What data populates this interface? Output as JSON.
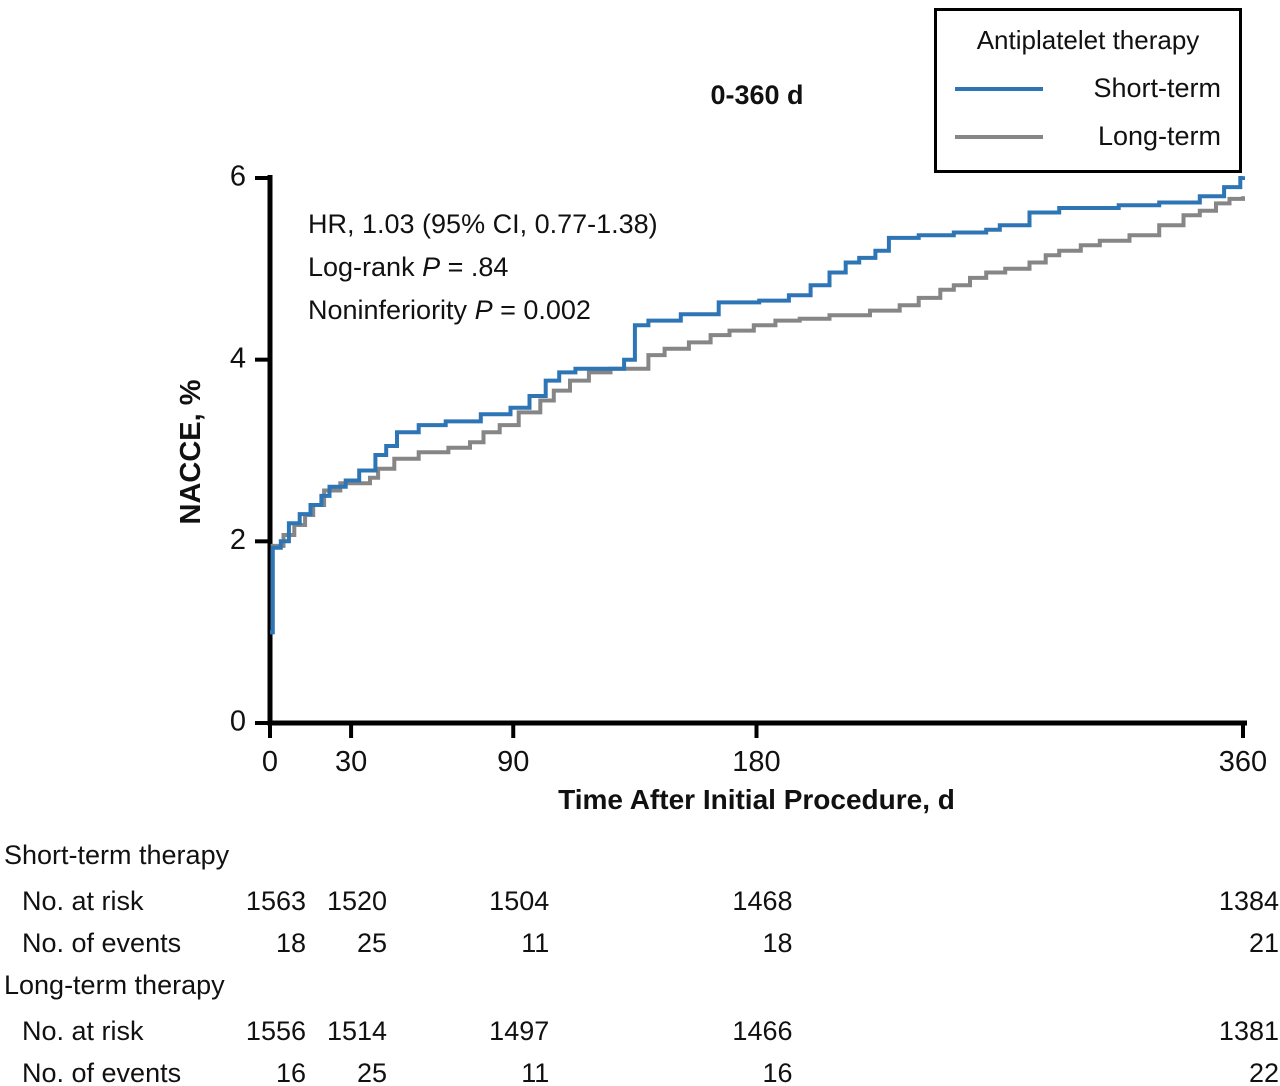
{
  "figure": {
    "title": "0-360 d",
    "annotations": {
      "hr_line": "HR, 1.03 (95% CI, 0.77-1.38)",
      "logrank": {
        "pre": "Log-rank ",
        "italic": "P",
        "post": " = .84"
      },
      "noninferiority": {
        "pre": "Noninferiority ",
        "italic": "P",
        "post": " = 0.002"
      }
    },
    "legend": {
      "title": "Antiplatelet therapy",
      "items": [
        {
          "label": "Short-term",
          "color": "#2e75b6"
        },
        {
          "label": "Long-term",
          "color": "#868686"
        }
      ]
    }
  },
  "chart_data": {
    "type": "line",
    "subtype": "step-cumulative-incidence",
    "title": "0-360 d",
    "xlabel": "Time After Initial Procedure, d",
    "ylabel": "NACCE, %",
    "xlim": [
      0,
      360
    ],
    "ylim": [
      0,
      6
    ],
    "xticks": [
      0,
      30,
      90,
      180,
      360
    ],
    "yticks": [
      0,
      2,
      4,
      6
    ],
    "grid": false,
    "legend_position": "top-right",
    "series": [
      {
        "name": "Long-term",
        "color": "#868686",
        "points": [
          [
            0,
            1.0
          ],
          [
            1,
            1.95
          ],
          [
            5,
            2.07
          ],
          [
            9,
            2.18
          ],
          [
            13,
            2.29
          ],
          [
            16,
            2.4
          ],
          [
            20,
            2.56
          ],
          [
            26,
            2.64
          ],
          [
            37,
            2.7
          ],
          [
            40,
            2.8
          ],
          [
            46,
            2.91
          ],
          [
            55,
            2.98
          ],
          [
            66,
            3.03
          ],
          [
            74,
            3.09
          ],
          [
            79,
            3.2
          ],
          [
            85,
            3.28
          ],
          [
            92,
            3.42
          ],
          [
            100,
            3.55
          ],
          [
            105,
            3.66
          ],
          [
            111,
            3.77
          ],
          [
            118,
            3.86
          ],
          [
            126,
            3.9
          ],
          [
            140,
            4.05
          ],
          [
            146,
            4.12
          ],
          [
            155,
            4.19
          ],
          [
            163,
            4.27
          ],
          [
            170,
            4.32
          ],
          [
            179,
            4.38
          ],
          [
            187,
            4.43
          ],
          [
            196,
            4.45
          ],
          [
            207,
            4.49
          ],
          [
            222,
            4.54
          ],
          [
            233,
            4.6
          ],
          [
            240,
            4.68
          ],
          [
            248,
            4.77
          ],
          [
            253,
            4.82
          ],
          [
            259,
            4.9
          ],
          [
            265,
            4.96
          ],
          [
            272,
            5.0
          ],
          [
            281,
            5.07
          ],
          [
            287,
            5.15
          ],
          [
            292,
            5.2
          ],
          [
            300,
            5.26
          ],
          [
            307,
            5.31
          ],
          [
            318,
            5.37
          ],
          [
            329,
            5.48
          ],
          [
            338,
            5.59
          ],
          [
            344,
            5.64
          ],
          [
            350,
            5.72
          ],
          [
            355,
            5.77
          ],
          [
            360,
            5.8
          ]
        ]
      },
      {
        "name": "Short-term",
        "color": "#2e75b6",
        "points": [
          [
            0,
            1.0
          ],
          [
            1,
            1.93
          ],
          [
            4,
            2.0
          ],
          [
            7,
            2.2
          ],
          [
            11,
            2.3
          ],
          [
            15,
            2.4
          ],
          [
            19,
            2.5
          ],
          [
            22,
            2.6
          ],
          [
            28,
            2.67
          ],
          [
            33,
            2.78
          ],
          [
            39,
            2.95
          ],
          [
            43,
            3.05
          ],
          [
            47,
            3.2
          ],
          [
            55,
            3.28
          ],
          [
            65,
            3.32
          ],
          [
            78,
            3.4
          ],
          [
            89,
            3.47
          ],
          [
            96,
            3.6
          ],
          [
            102,
            3.77
          ],
          [
            107,
            3.86
          ],
          [
            113,
            3.9
          ],
          [
            131,
            4.0
          ],
          [
            135,
            4.38
          ],
          [
            140,
            4.43
          ],
          [
            152,
            4.5
          ],
          [
            166,
            4.63
          ],
          [
            181,
            4.65
          ],
          [
            192,
            4.71
          ],
          [
            200,
            4.82
          ],
          [
            207,
            4.96
          ],
          [
            213,
            5.07
          ],
          [
            218,
            5.12
          ],
          [
            224,
            5.2
          ],
          [
            229,
            5.34
          ],
          [
            240,
            5.37
          ],
          [
            253,
            5.4
          ],
          [
            265,
            5.43
          ],
          [
            270,
            5.48
          ],
          [
            281,
            5.62
          ],
          [
            292,
            5.67
          ],
          [
            314,
            5.7
          ],
          [
            329,
            5.73
          ],
          [
            344,
            5.8
          ],
          [
            353,
            5.9
          ],
          [
            359,
            6.0
          ],
          [
            360,
            6.02
          ]
        ]
      }
    ]
  },
  "risk_table": {
    "column_days": [
      0,
      30,
      90,
      180,
      360
    ],
    "groups": [
      {
        "label": "Short-term therapy",
        "rows": [
          {
            "label": "No. at risk",
            "values": [
              1563,
              1520,
              1504,
              1468,
              1384
            ]
          },
          {
            "label": "No. of events",
            "values": [
              18,
              25,
              11,
              18,
              21
            ]
          }
        ]
      },
      {
        "label": "Long-term therapy",
        "rows": [
          {
            "label": "No. at risk",
            "values": [
              1556,
              1514,
              1497,
              1466,
              1381
            ]
          },
          {
            "label": "No. of events",
            "values": [
              16,
              25,
              11,
              16,
              22
            ]
          }
        ]
      }
    ]
  }
}
